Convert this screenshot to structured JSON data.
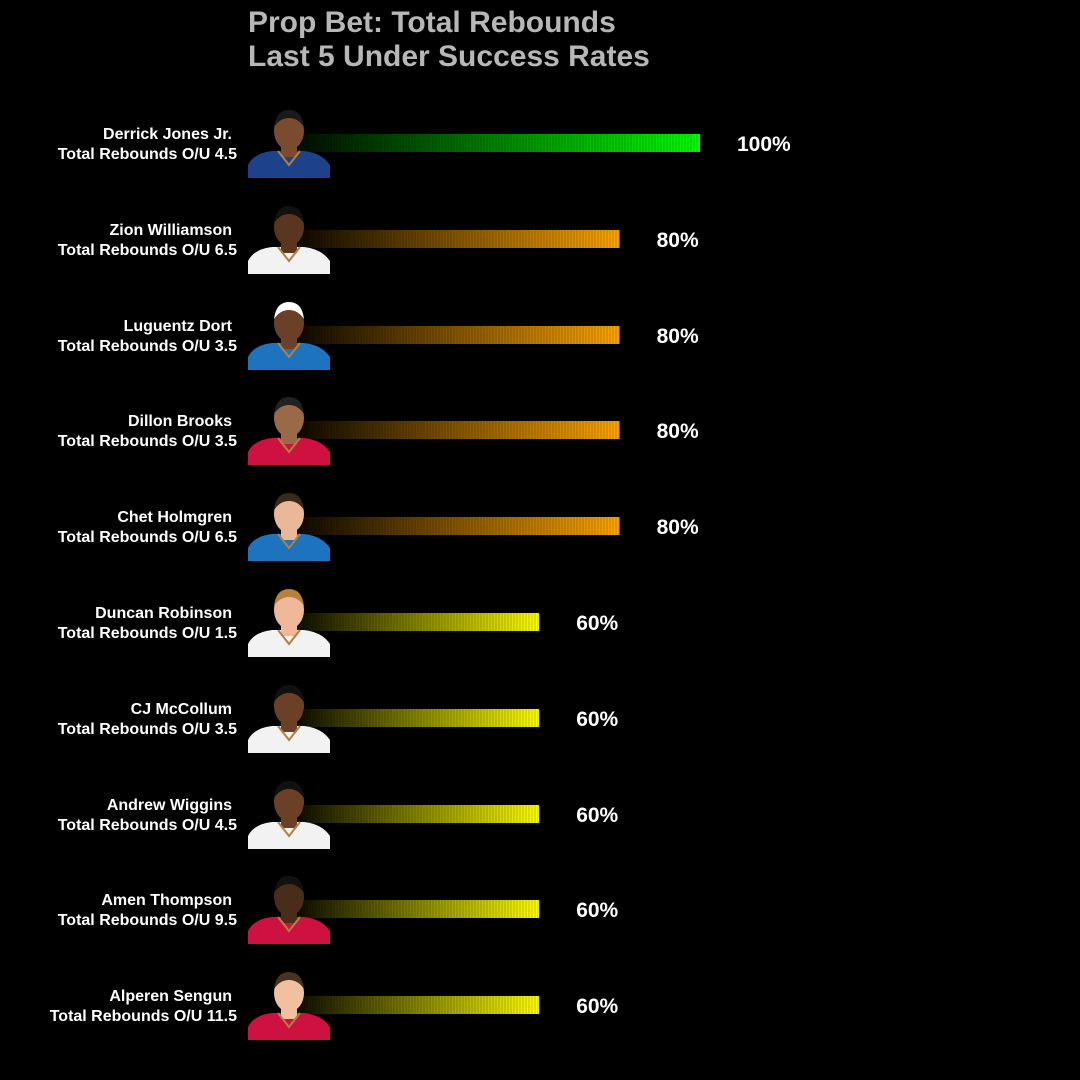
{
  "chart_data": {
    "type": "bar",
    "orientation": "horizontal",
    "title": "Prop Bet: Total Rebounds",
    "subtitle": "Last 5 Under Success Rates",
    "xlim": [
      0,
      100
    ],
    "grid": false,
    "legend": "none",
    "value_suffix": "%",
    "rows": [
      {
        "player": "Derrick Jones Jr.",
        "line": "Total Rebounds O/U 4.5",
        "value": 100,
        "color": "#00ff00",
        "jersey": "#1d428a",
        "skin": "#7a4b2e",
        "hair": "#1a1a1a"
      },
      {
        "player": "Zion Williamson",
        "line": "Total Rebounds O/U 6.5",
        "value": 80,
        "color": "#ffa500",
        "jersey": "#f2f2f2",
        "skin": "#5a3520",
        "hair": "#111111"
      },
      {
        "player": "Luguentz Dort",
        "line": "Total Rebounds O/U 3.5",
        "value": 80,
        "color": "#ffa500",
        "jersey": "#1e73be",
        "skin": "#6b4028",
        "hair": "#ffffff"
      },
      {
        "player": "Dillon Brooks",
        "line": "Total Rebounds O/U 3.5",
        "value": 80,
        "color": "#ffa500",
        "jersey": "#ce1141",
        "skin": "#9a6a48",
        "hair": "#222222"
      },
      {
        "player": "Chet Holmgren",
        "line": "Total Rebounds O/U 6.5",
        "value": 80,
        "color": "#ffa500",
        "jersey": "#1e73be",
        "skin": "#e8b898",
        "hair": "#3a2a1c"
      },
      {
        "player": "Duncan Robinson",
        "line": "Total Rebounds O/U 1.5",
        "value": 60,
        "color": "#ffff00",
        "jersey": "#f2f2f2",
        "skin": "#f0b898",
        "hair": "#b5813d"
      },
      {
        "player": "CJ McCollum",
        "line": "Total Rebounds O/U 3.5",
        "value": 60,
        "color": "#ffff00",
        "jersey": "#f2f2f2",
        "skin": "#6b4028",
        "hair": "#111111"
      },
      {
        "player": "Andrew Wiggins",
        "line": "Total Rebounds O/U 4.5",
        "value": 60,
        "color": "#ffff00",
        "jersey": "#f2f2f2",
        "skin": "#6b4028",
        "hair": "#111111"
      },
      {
        "player": "Amen Thompson",
        "line": "Total Rebounds O/U 9.5",
        "value": 60,
        "color": "#ffff00",
        "jersey": "#ce1141",
        "skin": "#4a2c1a",
        "hair": "#111111"
      },
      {
        "player": "Alperen Sengun",
        "line": "Total Rebounds O/U 11.5",
        "value": 60,
        "color": "#ffff00",
        "jersey": "#ce1141",
        "skin": "#f0c0a0",
        "hair": "#4a3220"
      }
    ]
  }
}
